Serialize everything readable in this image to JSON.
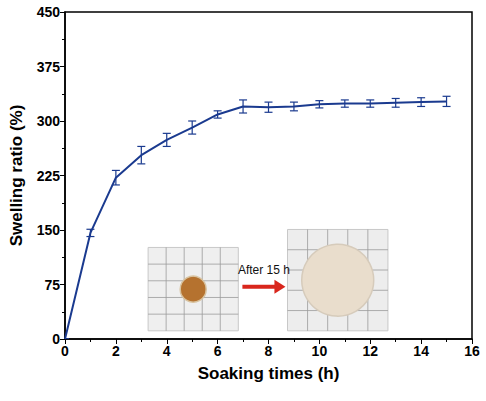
{
  "chart_data": {
    "type": "line",
    "xlabel": "Soaking times (h)",
    "ylabel": "Swelling ratio (%)",
    "x": [
      0,
      1,
      2,
      3,
      4,
      5,
      6,
      7,
      8,
      9,
      10,
      11,
      12,
      13,
      14,
      15
    ],
    "values": [
      0,
      146,
      222,
      253,
      274,
      291,
      309,
      320,
      319,
      320,
      323,
      324,
      324,
      325,
      326,
      327
    ],
    "errors": [
      0,
      5,
      10,
      12,
      9,
      9,
      5,
      9,
      7,
      6,
      5,
      5,
      5,
      6,
      6,
      7
    ],
    "color": "#1a3a8f",
    "marker": "none",
    "xlim": [
      0,
      16
    ],
    "xticks": [
      0,
      2,
      4,
      6,
      8,
      10,
      12,
      14,
      16
    ],
    "ylim": [
      0,
      450
    ],
    "yticks": [
      0,
      75,
      150,
      225,
      300,
      375,
      450
    ],
    "grid": false,
    "annotations": [
      "After 15 h"
    ]
  }
}
